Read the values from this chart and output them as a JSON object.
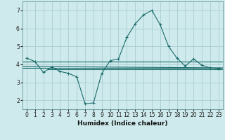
{
  "xlabel": "Humidex (Indice chaleur)",
  "background_color": "#ceeaec",
  "grid_color": "#aacdd1",
  "line_color": "#1a6b6b",
  "xlim": [
    -0.5,
    23.5
  ],
  "ylim": [
    1.5,
    7.5
  ],
  "yticks": [
    2,
    3,
    4,
    5,
    6,
    7
  ],
  "xticks": [
    0,
    1,
    2,
    3,
    4,
    5,
    6,
    7,
    8,
    9,
    10,
    11,
    12,
    13,
    14,
    15,
    16,
    17,
    18,
    19,
    20,
    21,
    22,
    23
  ],
  "main_x": [
    0,
    1,
    2,
    3,
    4,
    5,
    6,
    7,
    8,
    9,
    10,
    11,
    12,
    13,
    14,
    15,
    16,
    17,
    18,
    19,
    20,
    21,
    22,
    23
  ],
  "main_y": [
    4.35,
    4.15,
    3.55,
    3.85,
    3.6,
    3.5,
    3.3,
    1.8,
    1.85,
    3.5,
    4.2,
    4.3,
    5.5,
    6.25,
    6.75,
    7.0,
    6.2,
    5.0,
    4.35,
    3.9,
    4.3,
    3.95,
    3.8,
    3.75
  ],
  "flat_lines": [
    {
      "x": [
        -0.5,
        23.5
      ],
      "y": [
        4.13,
        4.13
      ]
    },
    {
      "x": [
        -0.5,
        23.5
      ],
      "y": [
        3.88,
        3.8
      ]
    },
    {
      "x": [
        -0.5,
        23.5
      ],
      "y": [
        3.78,
        3.78
      ]
    },
    {
      "x": [
        2.5,
        23.5
      ],
      "y": [
        3.72,
        3.72
      ]
    }
  ]
}
